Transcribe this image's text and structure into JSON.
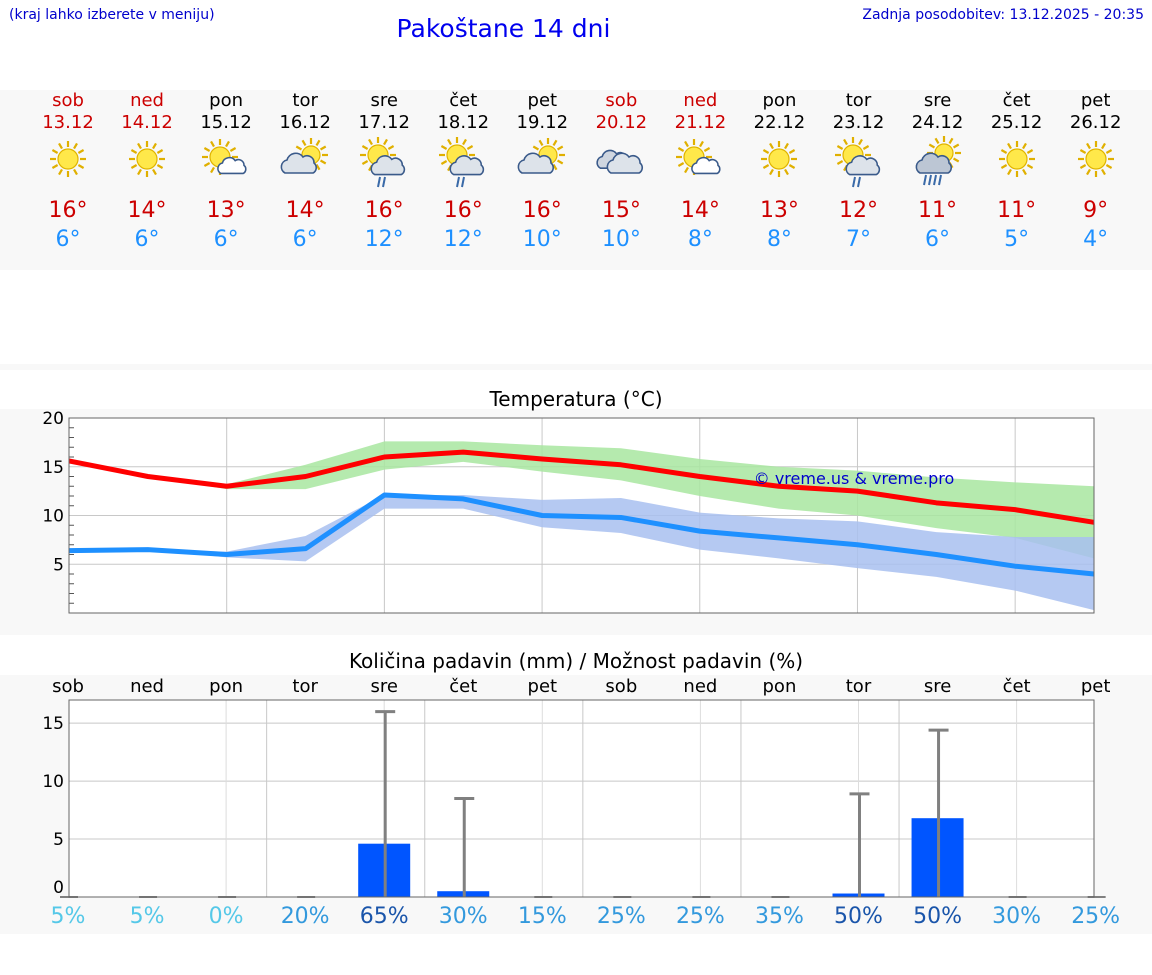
{
  "header": {
    "hint": "(kraj lahko izberete v meniju)",
    "title": "Pakoštane 14 dni",
    "updated": "Zadnja posodobitev: 13.12.2025 - 20:35"
  },
  "colors": {
    "weekend": "#cc0000",
    "weekday": "#000000",
    "max_line": "#ff0000",
    "min_line": "#1e90ff",
    "max_band": "#a8e6a0",
    "min_band": "#a8c0f0",
    "bar": "#0055ff",
    "whisker": "#808080"
  },
  "days": [
    {
      "name": "sob",
      "date": "13.12",
      "weekend": true,
      "icon": "sunny-icon",
      "max": "16°",
      "min": "6°"
    },
    {
      "name": "ned",
      "date": "14.12",
      "weekend": true,
      "icon": "sunny-icon",
      "max": "14°",
      "min": "6°"
    },
    {
      "name": "pon",
      "date": "15.12",
      "weekend": false,
      "icon": "sun-cloud-icon",
      "max": "13°",
      "min": "6°"
    },
    {
      "name": "tor",
      "date": "16.12",
      "weekend": false,
      "icon": "cloud-sun-icon",
      "max": "14°",
      "min": "6°"
    },
    {
      "name": "sre",
      "date": "17.12",
      "weekend": false,
      "icon": "sun-rain-icon",
      "max": "16°",
      "min": "12°"
    },
    {
      "name": "čet",
      "date": "18.12",
      "weekend": false,
      "icon": "sun-rain-icon",
      "max": "16°",
      "min": "12°"
    },
    {
      "name": "pet",
      "date": "19.12",
      "weekend": false,
      "icon": "cloud-sun-icon",
      "max": "16°",
      "min": "10°"
    },
    {
      "name": "sob",
      "date": "20.12",
      "weekend": true,
      "icon": "cloudy-icon",
      "max": "15°",
      "min": "10°"
    },
    {
      "name": "ned",
      "date": "21.12",
      "weekend": true,
      "icon": "sun-cloud-icon",
      "max": "14°",
      "min": "8°"
    },
    {
      "name": "pon",
      "date": "22.12",
      "weekend": false,
      "icon": "sunny-icon",
      "max": "13°",
      "min": "8°"
    },
    {
      "name": "tor",
      "date": "23.12",
      "weekend": false,
      "icon": "sun-rain-icon",
      "max": "12°",
      "min": "7°"
    },
    {
      "name": "sre",
      "date": "24.12",
      "weekend": false,
      "icon": "cloud-rain-icon",
      "max": "11°",
      "min": "6°"
    },
    {
      "name": "čet",
      "date": "25.12",
      "weekend": false,
      "icon": "sunny-icon",
      "max": "11°",
      "min": "5°"
    },
    {
      "name": "pet",
      "date": "26.12",
      "weekend": false,
      "icon": "sunny-icon",
      "max": "9°",
      "min": "4°"
    }
  ],
  "chart_data": [
    {
      "type": "line",
      "title": "Temperatura (°C)",
      "watermark": "© vreme.us & vreme.pro",
      "ylim": [
        0,
        20
      ],
      "yticks": [
        5,
        10,
        15,
        20
      ],
      "grid": true,
      "x": [
        0,
        1,
        2,
        3,
        4,
        5,
        6,
        7,
        8,
        9,
        10,
        11,
        12,
        13
      ],
      "series": [
        {
          "name": "max",
          "values": [
            15.6,
            14.0,
            13.0,
            14.0,
            16.0,
            16.5,
            15.8,
            15.2,
            14.0,
            13.0,
            12.5,
            11.3,
            10.6,
            9.3
          ]
        },
        {
          "name": "min",
          "values": [
            6.4,
            6.5,
            6.0,
            6.6,
            12.1,
            11.7,
            10.0,
            9.8,
            8.4,
            7.7,
            7.0,
            6.0,
            4.8,
            4.0
          ]
        }
      ],
      "bands": [
        {
          "name": "max-range",
          "low": [
            15.6,
            14.0,
            12.7,
            12.7,
            14.7,
            15.5,
            14.5,
            13.6,
            12.0,
            10.7,
            10.0,
            8.7,
            7.7,
            5.6
          ],
          "high": [
            15.6,
            14.0,
            13.2,
            15.2,
            17.6,
            17.6,
            17.2,
            16.9,
            15.8,
            15.0,
            14.6,
            13.9,
            13.4,
            13.0
          ]
        },
        {
          "name": "min-range",
          "low": [
            6.4,
            6.5,
            5.7,
            5.3,
            10.7,
            10.7,
            8.8,
            8.2,
            6.5,
            5.6,
            4.6,
            3.7,
            2.3,
            0.3
          ],
          "high": [
            6.4,
            6.5,
            6.3,
            7.9,
            12.1,
            12.1,
            11.6,
            11.8,
            10.3,
            9.7,
            9.4,
            8.3,
            7.8,
            7.8
          ]
        }
      ]
    },
    {
      "type": "bar",
      "title": "Količina padavin (mm) / Možnost padavin (%)",
      "ylim": [
        0,
        17
      ],
      "yticks": [
        0,
        5,
        10,
        15
      ],
      "categories": [
        "sob",
        "ned",
        "pon",
        "tor",
        "sre",
        "čet",
        "pet",
        "sob",
        "ned",
        "pon",
        "tor",
        "sre",
        "čet",
        "pet"
      ],
      "values": [
        0,
        0,
        0,
        0,
        4.6,
        0.5,
        0,
        0,
        0,
        0,
        0.3,
        6.8,
        0,
        0
      ],
      "whisker_max": [
        0,
        0,
        0,
        0,
        16.0,
        8.5,
        0,
        0,
        0,
        0,
        8.9,
        14.4,
        0,
        0
      ],
      "probability": [
        "5%",
        "5%",
        "0%",
        "20%",
        "65%",
        "30%",
        "15%",
        "25%",
        "25%",
        "35%",
        "50%",
        "50%",
        "30%",
        "25%"
      ],
      "probability_colors": [
        "#55c8e8",
        "#55c8e8",
        "#55c8e8",
        "#3399dd",
        "#1a55aa",
        "#3399dd",
        "#3399dd",
        "#3399dd",
        "#3399dd",
        "#3399dd",
        "#1a55aa",
        "#1a55aa",
        "#3399dd",
        "#3399dd"
      ]
    }
  ]
}
